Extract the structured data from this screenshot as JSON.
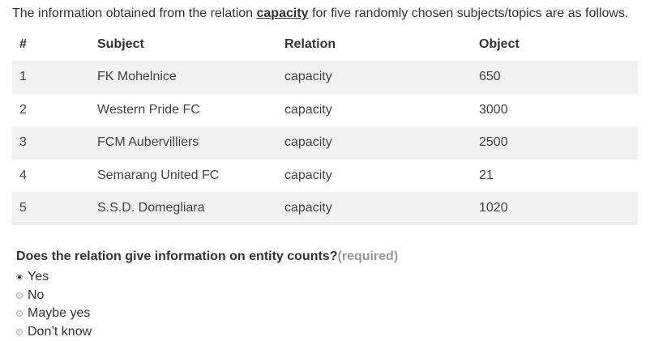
{
  "intro": {
    "prefix": "The information obtained from the relation ",
    "relation": "capacity",
    "suffix": " for five randomly chosen subjects/topics are as follows."
  },
  "table": {
    "headers": [
      "#",
      "Subject",
      "Relation",
      "Object"
    ],
    "rows": [
      [
        "1",
        "FK Mohelnice",
        "capacity",
        "650"
      ],
      [
        "2",
        "Western Pride FC",
        "capacity",
        "3000"
      ],
      [
        "3",
        "FCM Aubervilliers",
        "capacity",
        "2500"
      ],
      [
        "4",
        "Semarang United FC",
        "capacity",
        "21"
      ],
      [
        "5",
        "S.S.D. Domegliara",
        "capacity",
        "1020"
      ]
    ]
  },
  "question": {
    "text": "Does the relation give information on entity counts?",
    "required": "(required)",
    "options": [
      "Yes",
      "No",
      "Maybe yes",
      "Don’t know"
    ],
    "selected": "Yes"
  }
}
